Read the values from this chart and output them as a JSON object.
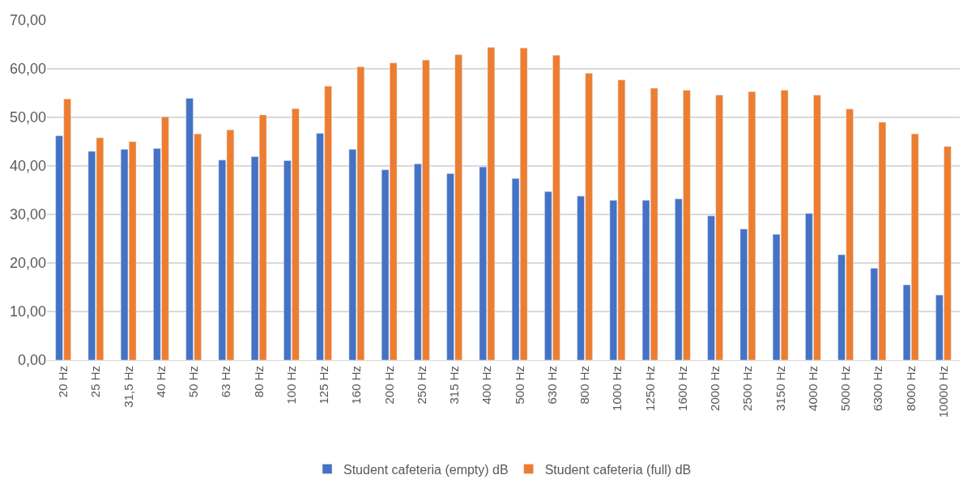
{
  "chart_data": {
    "type": "bar",
    "categories": [
      "20 Hz",
      "25 Hz",
      "31,5 Hz",
      "40 Hz",
      "50 Hz",
      "63 Hz",
      "80 Hz",
      "100 Hz",
      "125 Hz",
      "160 Hz",
      "200 Hz",
      "250 Hz",
      "315 Hz",
      "400 Hz",
      "500 Hz",
      "630 Hz",
      "800 Hz",
      "1000 Hz",
      "1250 Hz",
      "1600 Hz",
      "2000 Hz",
      "2500 Hz",
      "3150 Hz",
      "4000 Hz",
      "5000 Hz",
      "6300 Hz",
      "8000 Hz",
      "10000 Hz"
    ],
    "series": [
      {
        "name": "Student cafeteria (empty) dB",
        "color": "#4472c4",
        "values": [
          46.2,
          43.0,
          43.4,
          43.6,
          53.9,
          41.2,
          41.9,
          41.1,
          46.7,
          43.4,
          39.2,
          40.4,
          38.4,
          39.8,
          37.4,
          34.7,
          33.8,
          32.9,
          32.9,
          33.2,
          29.7,
          27.0,
          25.9,
          30.2,
          21.7,
          18.9,
          15.5,
          13.4
        ]
      },
      {
        "name": "Student cafeteria (full) dB",
        "color": "#ed7d31",
        "values": [
          53.8,
          45.8,
          45.0,
          50.1,
          46.6,
          47.4,
          50.5,
          51.8,
          56.4,
          60.4,
          61.2,
          61.8,
          62.9,
          64.4,
          64.3,
          62.8,
          59.1,
          57.7,
          56.0,
          55.6,
          54.6,
          55.3,
          55.6,
          54.6,
          51.7,
          49.0,
          46.6,
          44.0
        ]
      }
    ],
    "ylim": [
      0,
      70
    ],
    "yticks": [
      {
        "value": 0,
        "label": "0,00"
      },
      {
        "value": 10,
        "label": "10,00"
      },
      {
        "value": 20,
        "label": "20,00"
      },
      {
        "value": 30,
        "label": "30,00"
      },
      {
        "value": 40,
        "label": "40,00"
      },
      {
        "value": 50,
        "label": "50,00"
      },
      {
        "value": 60,
        "label": "60,00"
      },
      {
        "value": 70,
        "label": "70,00"
      }
    ],
    "grid": "y",
    "legend": "bottom"
  }
}
